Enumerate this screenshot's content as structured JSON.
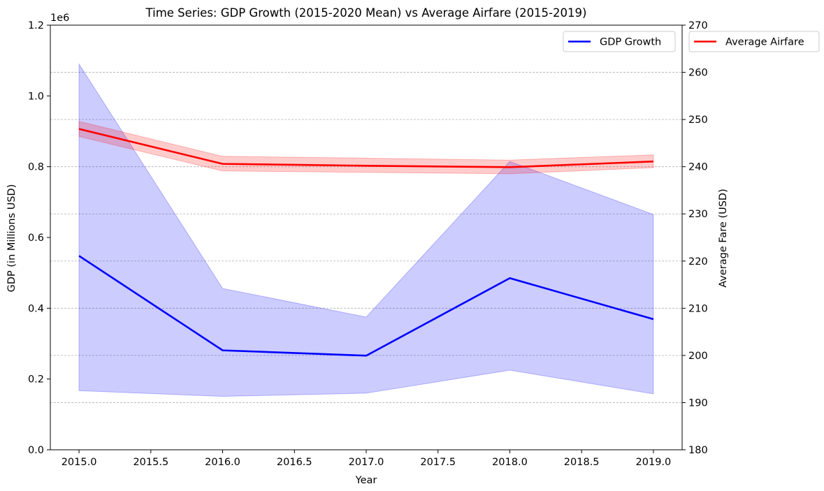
{
  "chart_data": {
    "type": "line",
    "title": "Time Series: GDP Growth (2015-2020 Mean) vs Average Airfare (2015-2019)",
    "xlabel": "Year",
    "x": [
      2015,
      2016,
      2017,
      2018,
      2019
    ],
    "xlim": [
      2014.8,
      2019.2
    ],
    "x_ticks": [
      "2015.0",
      "2015.5",
      "2016.0",
      "2016.5",
      "2017.0",
      "2017.5",
      "2018.0",
      "2018.5",
      "2019.0"
    ],
    "grid": "horizontal dashed",
    "left_axis": {
      "label": "GDP (in Millions USD)",
      "offset_label": "1e6",
      "ylim": [
        0,
        1200000
      ],
      "ticks": [
        "0.0",
        "0.2",
        "0.4",
        "0.6",
        "0.8",
        "1.0",
        "1.2"
      ]
    },
    "right_axis": {
      "label": "Average Fare (USD)",
      "ylim": [
        180,
        270
      ],
      "ticks": [
        "180",
        "190",
        "200",
        "210",
        "220",
        "230",
        "240",
        "250",
        "260",
        "270"
      ]
    },
    "series": [
      {
        "name": "GDP Growth",
        "axis": "left",
        "color": "#0000ff",
        "band_color": "#0000ff",
        "values": [
          548000,
          281000,
          266000,
          485000,
          369000
        ],
        "band_lower": [
          167000,
          151000,
          160000,
          225000,
          158000
        ],
        "band_upper": [
          1090000,
          456000,
          375000,
          815000,
          665000
        ],
        "legend_position": "top-right"
      },
      {
        "name": "Average Airfare",
        "axis": "right",
        "color": "#ff0000",
        "band_color": "#ff0000",
        "values": [
          248.0,
          240.6,
          240.2,
          239.9,
          241.1
        ],
        "band_lower": [
          246.4,
          239.1,
          238.8,
          238.5,
          239.8
        ],
        "band_upper": [
          249.6,
          242.2,
          241.8,
          241.4,
          242.5
        ],
        "legend_position": "outside top-right"
      }
    ]
  }
}
